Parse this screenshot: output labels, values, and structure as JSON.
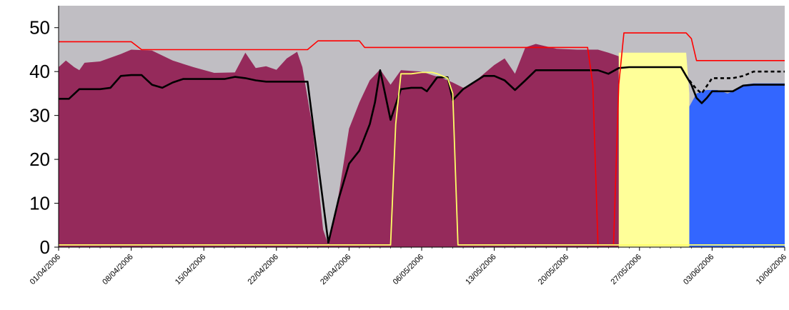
{
  "chart_data": {
    "type": "area",
    "ylim": [
      0,
      55
    ],
    "yticks": [
      0,
      10,
      20,
      30,
      40,
      50
    ],
    "x_tick_labels": [
      "01/04/2006",
      "08/04/2006",
      "15/04/2006",
      "22/04/2006",
      "29/04/2006",
      "06/05/2006",
      "13/05/2006",
      "20/05/2006",
      "27/05/2006",
      "03/06/2006",
      "10/06/2006"
    ],
    "x_day_range": [
      0,
      70
    ],
    "grid": false,
    "legend": "none",
    "colors": {
      "plot_background": "#c0bec3",
      "maroon_area": "#952a5b",
      "yellow_area": "#ffff99",
      "blue_area": "#3366ff",
      "red_line": "#ff0000",
      "black_line": "#000000",
      "yellow_line": "#ffff66"
    },
    "series": [
      {
        "kind": "area",
        "color": "maroon",
        "points": [
          [
            0,
            41
          ],
          [
            0.7,
            42.5
          ],
          [
            1.5,
            41
          ],
          [
            2,
            40.3
          ],
          [
            2.5,
            42
          ],
          [
            4,
            42.3
          ],
          [
            6,
            44
          ],
          [
            7,
            45
          ],
          [
            9,
            44.8
          ],
          [
            11,
            42.5
          ],
          [
            13,
            41
          ],
          [
            15,
            39.7
          ],
          [
            17,
            39.8
          ],
          [
            18,
            44.3
          ],
          [
            19,
            40.8
          ],
          [
            20,
            41.2
          ],
          [
            21,
            40.4
          ],
          [
            22,
            43
          ],
          [
            23,
            44.5
          ],
          [
            23.5,
            41
          ],
          [
            24.5,
            27
          ],
          [
            25.5,
            4
          ],
          [
            26,
            0.5
          ],
          [
            27,
            12
          ],
          [
            28,
            27
          ],
          [
            29,
            33
          ],
          [
            30,
            38
          ],
          [
            31,
            40.5
          ],
          [
            32,
            37
          ],
          [
            33,
            40.3
          ],
          [
            35,
            40
          ],
          [
            36,
            39.2
          ],
          [
            37,
            38.5
          ],
          [
            38,
            37.5
          ],
          [
            39,
            36.3
          ],
          [
            40,
            37.5
          ],
          [
            42,
            41.5
          ],
          [
            43,
            43
          ],
          [
            44,
            39.5
          ],
          [
            45,
            45.5
          ],
          [
            46,
            46.3
          ],
          [
            48,
            45.2
          ],
          [
            50,
            45
          ],
          [
            52,
            45
          ],
          [
            53,
            44.3
          ],
          [
            54,
            43.5
          ],
          [
            54.5,
            0
          ]
        ]
      },
      {
        "kind": "area",
        "color": "yellow",
        "points": [
          [
            54,
            44.3
          ],
          [
            60.5,
            44.3
          ],
          [
            60.8,
            35
          ],
          [
            60.8,
            0
          ]
        ]
      },
      {
        "kind": "area",
        "color": "blue",
        "points": [
          [
            60.8,
            32
          ],
          [
            61.5,
            35
          ],
          [
            62.5,
            35.8
          ],
          [
            63.5,
            35.8
          ],
          [
            64.5,
            35
          ],
          [
            65.5,
            36
          ],
          [
            66,
            37
          ],
          [
            67,
            37.3
          ],
          [
            70,
            37.3
          ]
        ]
      },
      {
        "kind": "line",
        "color": "black",
        "points": [
          [
            0,
            33.8
          ],
          [
            1,
            33.8
          ],
          [
            2,
            36
          ],
          [
            4,
            36
          ],
          [
            5,
            36.3
          ],
          [
            6,
            39
          ],
          [
            7,
            39.2
          ],
          [
            8,
            39.2
          ],
          [
            9,
            37
          ],
          [
            10,
            36.3
          ],
          [
            11,
            37.5
          ],
          [
            12,
            38.3
          ],
          [
            16,
            38.3
          ],
          [
            17,
            38.8
          ],
          [
            18,
            38.5
          ],
          [
            19,
            38
          ],
          [
            20,
            37.7
          ],
          [
            24,
            37.7
          ],
          [
            26,
            1
          ],
          [
            27,
            11
          ],
          [
            28,
            19
          ],
          [
            29,
            22
          ],
          [
            30,
            28
          ],
          [
            30.5,
            33
          ],
          [
            31,
            40.3
          ],
          [
            32,
            29
          ],
          [
            33,
            36
          ],
          [
            34,
            36.3
          ],
          [
            35,
            36.3
          ],
          [
            35.5,
            35.5
          ],
          [
            36.5,
            38.7
          ],
          [
            37.5,
            38.7
          ],
          [
            38,
            33.5
          ],
          [
            39,
            36
          ],
          [
            40,
            37.5
          ],
          [
            41,
            39
          ],
          [
            42,
            39
          ],
          [
            43,
            38
          ],
          [
            44,
            35.8
          ],
          [
            45,
            38
          ],
          [
            46,
            40.3
          ],
          [
            48,
            40.3
          ],
          [
            50,
            40.3
          ],
          [
            52,
            40.3
          ],
          [
            53,
            39.5
          ],
          [
            54,
            40.8
          ],
          [
            55,
            41
          ],
          [
            60,
            41
          ],
          [
            60.5,
            39
          ],
          [
            61,
            37
          ],
          [
            61.5,
            34
          ],
          [
            62,
            32.8
          ],
          [
            62.5,
            34
          ],
          [
            63,
            35.5
          ],
          [
            64,
            35.5
          ],
          [
            65,
            35.5
          ],
          [
            66,
            36.8
          ],
          [
            67,
            37
          ],
          [
            70,
            37
          ]
        ]
      },
      {
        "kind": "line",
        "color": "black",
        "style": "dashed",
        "points": [
          [
            60.8,
            38
          ],
          [
            61.5,
            36
          ],
          [
            62,
            35
          ],
          [
            63,
            38.5
          ],
          [
            64,
            38.5
          ],
          [
            65,
            38.5
          ],
          [
            66,
            39
          ],
          [
            67,
            40
          ],
          [
            70,
            40
          ]
        ]
      },
      {
        "kind": "line",
        "color": "red",
        "points": [
          [
            0,
            46.8
          ],
          [
            7,
            46.8
          ],
          [
            8,
            45
          ],
          [
            17,
            45
          ],
          [
            24,
            45
          ],
          [
            25,
            47
          ],
          [
            29,
            47
          ],
          [
            29.5,
            45.5
          ],
          [
            48,
            45.5
          ],
          [
            51,
            45.5
          ],
          [
            51.5,
            37
          ],
          [
            52,
            0.5
          ],
          [
            53.5,
            0.5
          ],
          [
            54,
            37
          ],
          [
            54.5,
            48.8
          ],
          [
            60.5,
            48.8
          ],
          [
            61,
            47.5
          ],
          [
            61.5,
            42.5
          ],
          [
            70,
            42.5
          ]
        ]
      },
      {
        "kind": "line",
        "color": "yellow",
        "points": [
          [
            0,
            0.5
          ],
          [
            32,
            0.5
          ],
          [
            32.5,
            28
          ],
          [
            33,
            39.5
          ],
          [
            34,
            39.5
          ],
          [
            35,
            39.8
          ],
          [
            36,
            39.8
          ],
          [
            36.5,
            39.5
          ],
          [
            37.5,
            38.5
          ],
          [
            38,
            35
          ],
          [
            38.5,
            0.5
          ],
          [
            70,
            0.5
          ]
        ]
      }
    ]
  }
}
